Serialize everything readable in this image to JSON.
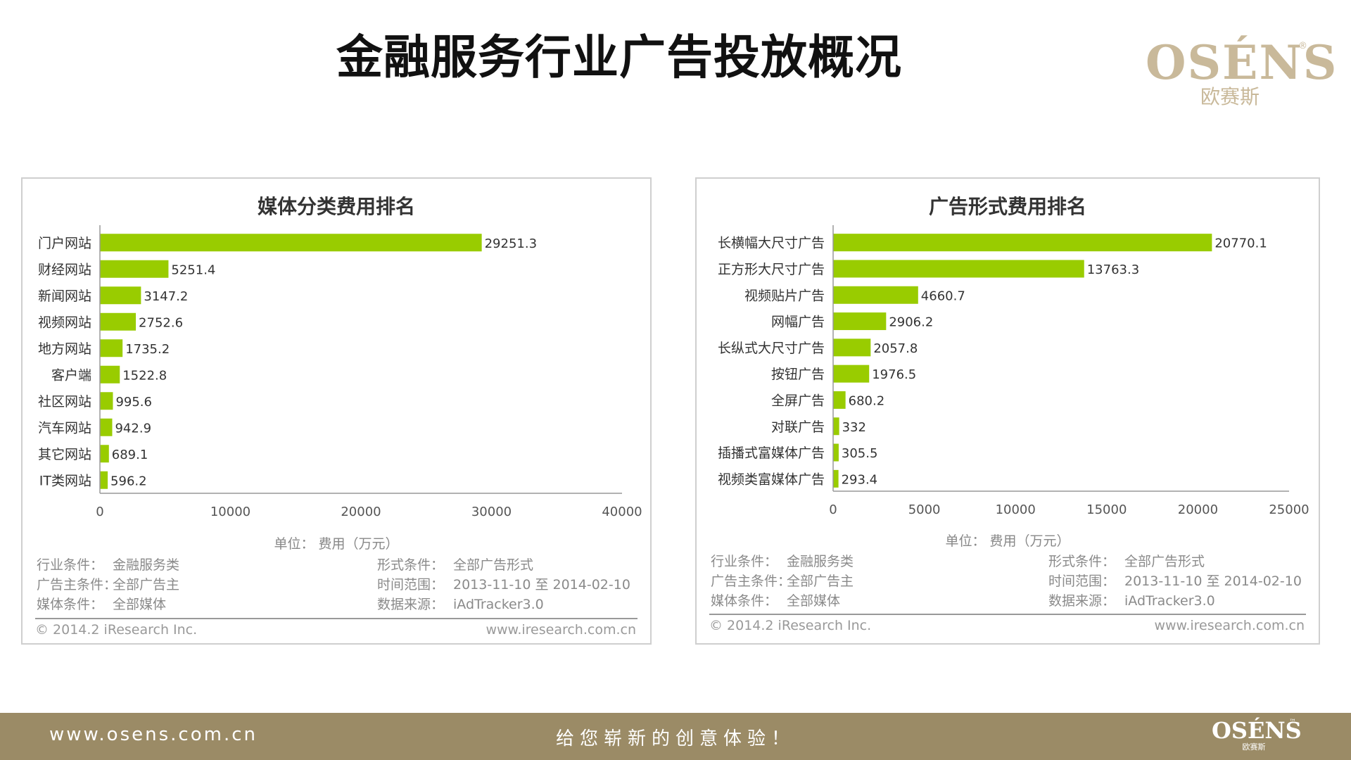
{
  "title": "金融服务行业广告投放概况",
  "logo": {
    "mark": "OSÉNS",
    "reg": "®",
    "subtitle": "欧赛斯"
  },
  "colors": {
    "bar": "#99cc00",
    "axis": "#999999",
    "footer": "#9b8b66",
    "logo": "#c9b99a"
  },
  "charts": [
    {
      "title": "媒体分类费用排名",
      "unit_label": "单位：  费用（万元）",
      "meta_left": [
        {
          "label": "行业条件：",
          "value": "金融服务类"
        },
        {
          "label": "广告主条件：",
          "value": "全部广告主"
        },
        {
          "label": "媒体条件：",
          "value": "全部媒体"
        }
      ],
      "meta_right": [
        {
          "label": "形式条件：",
          "value": "全部广告形式"
        },
        {
          "label": "时间范围：",
          "value": "2013-11-10 至 2014-02-10"
        },
        {
          "label": "数据来源：",
          "value": "iAdTracker3.0"
        }
      ],
      "copyright": "© 2014.2 iResearch Inc.",
      "site": "www.iresearch.com.cn"
    },
    {
      "title": "广告形式费用排名",
      "unit_label": "单位：  费用（万元）",
      "meta_left": [
        {
          "label": "行业条件：",
          "value": "金融服务类"
        },
        {
          "label": "广告主条件：",
          "value": "全部广告主"
        },
        {
          "label": "媒体条件：",
          "value": "全部媒体"
        }
      ],
      "meta_right": [
        {
          "label": "形式条件：",
          "value": "全部广告形式"
        },
        {
          "label": "时间范围：",
          "value": "2013-11-10 至 2014-02-10"
        },
        {
          "label": "数据来源：",
          "value": "iAdTracker3.0"
        }
      ],
      "copyright": "© 2014.2 iResearch Inc.",
      "site": "www.iresearch.com.cn"
    }
  ],
  "chart_data": [
    {
      "type": "bar",
      "orientation": "horizontal",
      "title": "媒体分类费用排名",
      "xlabel": "单位：  费用（万元）",
      "categories": [
        "门户网站",
        "财经网站",
        "新闻网站",
        "视频网站",
        "地方网站",
        "客户端",
        "社区网站",
        "汽车网站",
        "其它网站",
        "IT类网站"
      ],
      "values": [
        29251.3,
        5251.4,
        3147.2,
        2752.6,
        1735.2,
        1522.8,
        995.6,
        942.9,
        689.1,
        596.2
      ],
      "value_labels": [
        "29251.3",
        "5251.4",
        "3147.2",
        "2752.6",
        "1735.2",
        "1522.8",
        "995.6",
        "942.9",
        "689.1",
        "596.2"
      ],
      "xlim": [
        0,
        40000
      ],
      "ticks": [
        "0",
        "10000",
        "20000",
        "30000",
        "40000"
      ],
      "grid": false,
      "legend": "none"
    },
    {
      "type": "bar",
      "orientation": "horizontal",
      "title": "广告形式费用排名",
      "xlabel": "单位：  费用（万元）",
      "categories": [
        "长横幅大尺寸广告",
        "正方形大尺寸广告",
        "视频贴片广告",
        "网幅广告",
        "长纵式大尺寸广告",
        "按钮广告",
        "全屏广告",
        "对联广告",
        "插播式富媒体广告",
        "视频类富媒体广告"
      ],
      "values": [
        20770.1,
        13763.3,
        4660.7,
        2906.2,
        2057.8,
        1976.5,
        680.2,
        332,
        305.5,
        293.4
      ],
      "value_labels": [
        "20770.1",
        "13763.3",
        "4660.7",
        "2906.2",
        "2057.8",
        "1976.5",
        "680.2",
        "332",
        "305.5",
        "293.4"
      ],
      "xlim": [
        0,
        25000
      ],
      "ticks": [
        "0",
        "5000",
        "10000",
        "15000",
        "20000",
        "25000"
      ],
      "grid": false,
      "legend": "none"
    }
  ],
  "footer": {
    "url": "www.osens.com.cn",
    "slogan": "给您崭新的创意体验！",
    "logo_mark": "OSÉNS",
    "logo_tm": "™",
    "logo_sub": "欧赛斯"
  }
}
